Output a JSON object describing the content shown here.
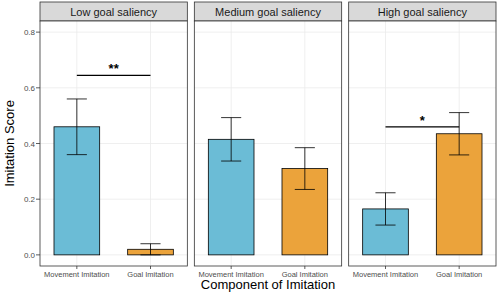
{
  "chart_data": {
    "type": "bar",
    "x_label": "Component of Imitation",
    "y_label": "Imitation Score",
    "categories": [
      "Movement Imitation",
      "Goal Imitation"
    ],
    "colors": [
      "#6bbcd6",
      "#eba33b"
    ],
    "ylim": [
      -0.04,
      0.84
    ],
    "yticks": [
      {
        "value": 0,
        "label": "0.0"
      },
      0.2,
      0.4,
      0.6,
      0.8
    ],
    "grid": true,
    "panels": [
      {
        "title": "Low goal saliency",
        "values": [
          0.46,
          0.02
        ],
        "errors": [
          0.1,
          0.02
        ]
      },
      {
        "title": "Medium goal saliency",
        "values": [
          0.415,
          0.31
        ],
        "errors": [
          0.078,
          0.075
        ]
      },
      {
        "title": "High goal saliency",
        "values": [
          0.165,
          0.435
        ],
        "errors": [
          0.058,
          0.076
        ]
      }
    ],
    "annotations": [
      {
        "panel": "Low goal saliency",
        "text": "**",
        "y": 0.645
      },
      {
        "panel": "High goal saliency",
        "text": "*",
        "y": 0.46
      }
    ]
  }
}
